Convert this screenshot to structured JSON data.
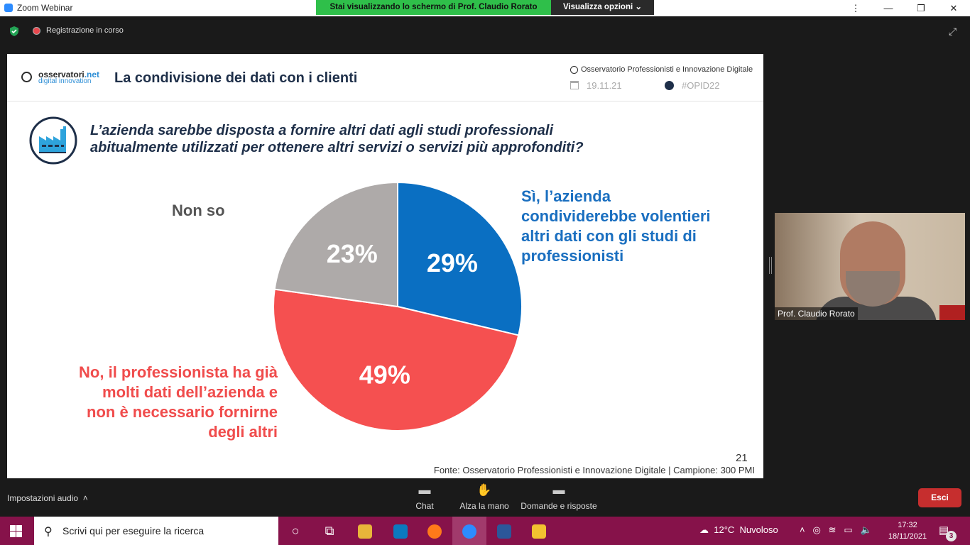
{
  "window": {
    "title": "Zoom Webinar",
    "share_banner": "Stai visualizzando lo schermo di Prof. Claudio Rorato",
    "view_options": "Visualizza opzioni",
    "recording": "Registrazione in corso"
  },
  "slide": {
    "brand_main": "osservatori",
    "brand_suffix": ".net",
    "brand_sub": "digital innovation",
    "title": "La condivisione dei dati con i clienti",
    "observatory": "Osservatorio Professionisti e Innovazione Digitale",
    "date": "19.11.21",
    "hashtag": "#OPID22",
    "question_line1": "L’azienda sarebbe disposta a fornire altri dati agli studi professionali",
    "question_line2": "abitualmente utilizzati per ottenere altri servizi o servizi più approfonditi?",
    "label_nonso": "Non so",
    "label_si_1": "Sì, l’azienda",
    "label_si_2": "condividerebbe volentieri",
    "label_si_3": "altri dati con gli studi di",
    "label_si_4": "professionisti",
    "label_no_1": "No, il professionista ha già",
    "label_no_2": "molti dati dell’azienda e",
    "label_no_3": "non è necessario fornirne",
    "label_no_4": "degli altri",
    "page_number": "21",
    "source": "Fonte: Osservatorio Professionisti e Innovazione Digitale | Campione: 300 PMI"
  },
  "chart_data": {
    "type": "pie",
    "slices": [
      {
        "label": "Sì, l’azienda condividerebbe volentieri altri dati con gli studi di professionisti",
        "value": 29,
        "display": "29%",
        "color": "#0a6fc2"
      },
      {
        "label": "No, il professionista ha già molti dati dell’azienda e non è necessario fornirne degli altri",
        "value": 49,
        "display": "49%",
        "color": "#f55050"
      },
      {
        "label": "Non so",
        "value": 23,
        "display": "23%",
        "color": "#aeaaa9"
      }
    ]
  },
  "video": {
    "name": "Prof. Claudio Rorato"
  },
  "controls": {
    "audio_settings": "Impostazioni audio",
    "chat": "Chat",
    "raise_hand": "Alza la mano",
    "qa": "Domande e risposte",
    "leave": "Esci"
  },
  "taskbar": {
    "search_placeholder": "Scrivi qui per eseguire la ricerca",
    "temperature": "12°C",
    "weather": "Nuvoloso",
    "time": "17:32",
    "date": "18/11/2021",
    "notifications": "3"
  }
}
